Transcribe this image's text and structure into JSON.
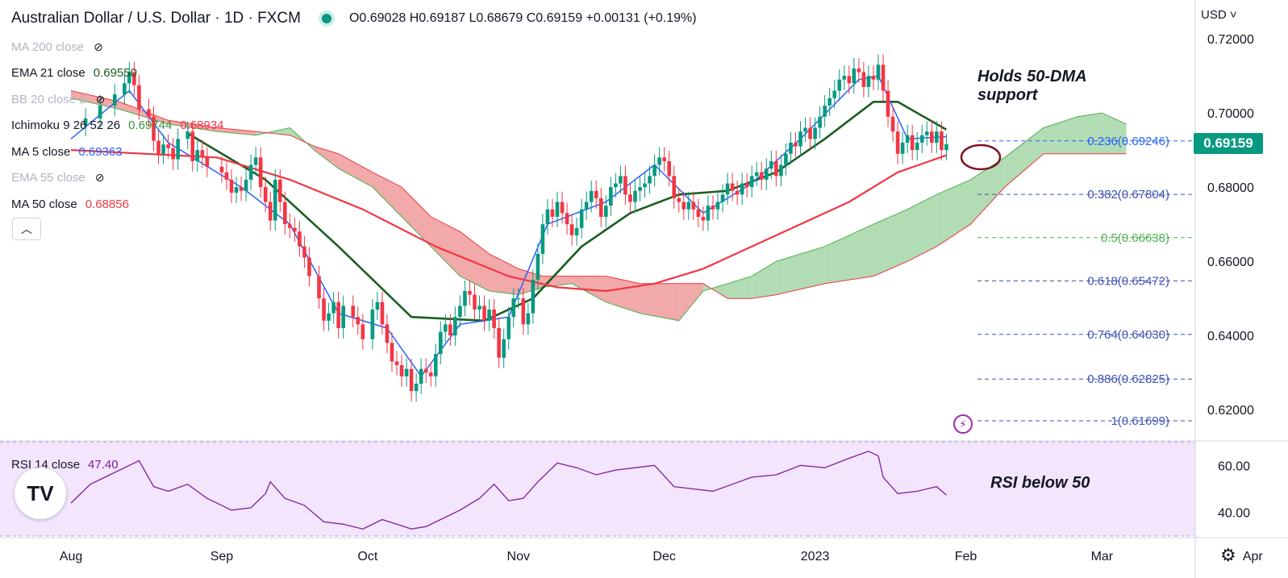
{
  "header": {
    "symbol": "Australian Dollar / U.S. Dollar · 1D · FXCM",
    "ohlc": "O0.69028 H0.69187 L0.68679 C0.69159 +0.00131 (+0.19%)"
  },
  "indicators": [
    {
      "name": "MA 200 close",
      "value": "",
      "hidden": true
    },
    {
      "name": "EMA 21 close",
      "value": "0.69550",
      "value_color": "#1b5e20"
    },
    {
      "name": "BB 20 close 2",
      "value": "",
      "hidden": true
    },
    {
      "name": "Ichimoku 9 26 52 26",
      "value": "0.69744",
      "value_color": "#388e3c",
      "value2": "0.68934",
      "value2_color": "#f23645"
    },
    {
      "name": "MA 5 close",
      "value": "0.69363",
      "value_color": "#2962ff"
    },
    {
      "name": "EMA 55 close",
      "value": "",
      "hidden": true
    },
    {
      "name": "MA 50 close",
      "value": "0.68856",
      "value_color": "#f23645"
    }
  ],
  "rsi_legend": {
    "name": "RSI 14 close",
    "value": "47.40"
  },
  "currency_label": "USD",
  "last_price": "0.69159",
  "annotations": {
    "top_note": [
      "Holds 50-DMA",
      "support"
    ],
    "rsi_note": "RSI below 50"
  },
  "logo_text": "TV",
  "colors": {
    "up": "#089981",
    "down": "#f23645",
    "ema21": "#1b5e20",
    "ma5": "#2962ff",
    "ma50": "#f23645",
    "cloud_bull": "#a5d6a7",
    "cloud_bear": "#ef9a9a",
    "rsi_line": "#7e1fa0",
    "rsi_band": "#f3e5fc",
    "fib": "#3f51b5"
  },
  "chart_data": {
    "type": "candlestick",
    "title": "Australian Dollar / U.S. Dollar · 1D · FXCM",
    "ylim": [
      0.612,
      0.7235
    ],
    "y_ticks": [
      "0.72000",
      "0.70000",
      "0.68000",
      "0.66000",
      "0.64000",
      "0.62000"
    ],
    "x_ticks": [
      {
        "label": "Aug",
        "day": 0
      },
      {
        "label": "Sep",
        "day": 31
      },
      {
        "label": "Oct",
        "day": 61
      },
      {
        "label": "Nov",
        "day": 92
      },
      {
        "label": "Dec",
        "day": 122
      },
      {
        "label": "2023",
        "day": 153
      },
      {
        "label": "Feb",
        "day": 184
      },
      {
        "label": "Mar",
        "day": 212
      },
      {
        "label": "Apr",
        "day": 243
      }
    ],
    "closes": [
      [
        0,
        0.6965
      ],
      [
        3,
        0.6985
      ],
      [
        6,
        0.702
      ],
      [
        9,
        0.705
      ],
      [
        11,
        0.708
      ],
      [
        12,
        0.711
      ],
      [
        13,
        0.7075
      ],
      [
        14,
        0.701
      ],
      [
        16,
        0.699
      ],
      [
        17,
        0.6925
      ],
      [
        18,
        0.689
      ],
      [
        19,
        0.6915
      ],
      [
        20,
        0.6905
      ],
      [
        21,
        0.6875
      ],
      [
        22,
        0.693
      ],
      [
        24,
        0.695
      ],
      [
        25,
        0.687
      ],
      [
        26,
        0.69
      ],
      [
        27,
        0.688
      ],
      [
        28,
        0.6855
      ],
      [
        31,
        0.684
      ],
      [
        32,
        0.682
      ],
      [
        33,
        0.6785
      ],
      [
        34,
        0.68
      ],
      [
        35,
        0.679
      ],
      [
        36,
        0.682
      ],
      [
        37,
        0.686
      ],
      [
        38,
        0.688
      ],
      [
        39,
        0.68
      ],
      [
        40,
        0.676
      ],
      [
        41,
        0.671
      ],
      [
        42,
        0.682
      ],
      [
        43,
        0.676
      ],
      [
        44,
        0.67
      ],
      [
        45,
        0.669
      ],
      [
        46,
        0.668
      ],
      [
        47,
        0.664
      ],
      [
        48,
        0.661
      ],
      [
        49,
        0.656
      ],
      [
        51,
        0.65
      ],
      [
        52,
        0.644
      ],
      [
        53,
        0.646
      ],
      [
        54,
        0.649
      ],
      [
        55,
        0.642
      ],
      [
        56,
        0.648
      ],
      [
        58,
        0.645
      ],
      [
        59,
        0.643
      ],
      [
        60,
        0.639
      ],
      [
        62,
        0.647
      ],
      [
        63,
        0.649
      ],
      [
        64,
        0.643
      ],
      [
        65,
        0.638
      ],
      [
        66,
        0.633
      ],
      [
        67,
        0.632
      ],
      [
        68,
        0.629
      ],
      [
        69,
        0.631
      ],
      [
        70,
        0.625
      ],
      [
        71,
        0.627
      ],
      [
        72,
        0.631
      ],
      [
        73,
        0.63
      ],
      [
        74,
        0.629
      ],
      [
        75,
        0.635
      ],
      [
        76,
        0.641
      ],
      [
        77,
        0.643
      ],
      [
        78,
        0.64
      ],
      [
        79,
        0.645
      ],
      [
        80,
        0.648
      ],
      [
        81,
        0.652
      ],
      [
        82,
        0.651
      ],
      [
        83,
        0.647
      ],
      [
        84,
        0.648
      ],
      [
        85,
        0.644
      ],
      [
        86,
        0.647
      ],
      [
        87,
        0.642
      ],
      [
        88,
        0.634
      ],
      [
        89,
        0.639
      ],
      [
        90,
        0.645
      ],
      [
        91,
        0.65
      ],
      [
        92,
        0.65
      ],
      [
        93,
        0.643
      ],
      [
        94,
        0.646
      ],
      [
        95,
        0.655
      ],
      [
        96,
        0.662
      ],
      [
        97,
        0.67
      ],
      [
        98,
        0.674
      ],
      [
        99,
        0.672
      ],
      [
        100,
        0.676
      ],
      [
        101,
        0.673
      ],
      [
        102,
        0.67
      ],
      [
        103,
        0.667
      ],
      [
        104,
        0.669
      ],
      [
        105,
        0.674
      ],
      [
        106,
        0.676
      ],
      [
        107,
        0.679
      ],
      [
        108,
        0.677
      ],
      [
        109,
        0.672
      ],
      [
        110,
        0.675
      ],
      [
        111,
        0.68
      ],
      [
        112,
        0.681
      ],
      [
        113,
        0.683
      ],
      [
        114,
        0.678
      ],
      [
        115,
        0.676
      ],
      [
        116,
        0.679
      ],
      [
        117,
        0.68
      ],
      [
        118,
        0.681
      ],
      [
        119,
        0.683
      ],
      [
        120,
        0.686
      ],
      [
        121,
        0.688
      ],
      [
        122,
        0.687
      ],
      [
        123,
        0.683
      ],
      [
        124,
        0.677
      ],
      [
        125,
        0.676
      ],
      [
        126,
        0.674
      ],
      [
        127,
        0.676
      ],
      [
        128,
        0.674
      ],
      [
        129,
        0.672
      ],
      [
        130,
        0.671
      ],
      [
        131,
        0.675
      ],
      [
        132,
        0.674
      ],
      [
        133,
        0.676
      ],
      [
        134,
        0.678
      ],
      [
        135,
        0.681
      ],
      [
        136,
        0.679
      ],
      [
        137,
        0.678
      ],
      [
        138,
        0.681
      ],
      [
        139,
        0.68
      ],
      [
        140,
        0.683
      ],
      [
        141,
        0.684
      ],
      [
        142,
        0.682
      ],
      [
        143,
        0.685
      ],
      [
        144,
        0.687
      ],
      [
        145,
        0.683
      ],
      [
        146,
        0.686
      ],
      [
        147,
        0.689
      ],
      [
        148,
        0.692
      ],
      [
        149,
        0.691
      ],
      [
        150,
        0.695
      ],
      [
        151,
        0.696
      ],
      [
        152,
        0.693
      ],
      [
        153,
        0.696
      ],
      [
        154,
        0.699
      ],
      [
        155,
        0.702
      ],
      [
        156,
        0.704
      ],
      [
        157,
        0.706
      ],
      [
        158,
        0.709
      ],
      [
        159,
        0.71
      ],
      [
        160,
        0.708
      ],
      [
        161,
        0.712
      ],
      [
        162,
        0.711
      ],
      [
        163,
        0.707
      ],
      [
        164,
        0.71
      ],
      [
        165,
        0.709
      ],
      [
        166,
        0.713
      ],
      [
        167,
        0.706
      ],
      [
        168,
        0.699
      ],
      [
        169,
        0.695
      ],
      [
        170,
        0.689
      ],
      [
        171,
        0.692
      ],
      [
        172,
        0.694
      ],
      [
        173,
        0.69
      ],
      [
        174,
        0.692
      ],
      [
        175,
        0.694
      ],
      [
        176,
        0.695
      ],
      [
        177,
        0.692
      ],
      [
        178,
        0.695
      ],
      [
        179,
        0.69
      ],
      [
        180,
        0.6916
      ]
    ],
    "series": [
      {
        "name": "EMA 21 close",
        "points": [
          [
            24,
            0.6945
          ],
          [
            40,
            0.682
          ],
          [
            55,
            0.664
          ],
          [
            70,
            0.645
          ],
          [
            85,
            0.644
          ],
          [
            95,
            0.65
          ],
          [
            105,
            0.664
          ],
          [
            115,
            0.673
          ],
          [
            125,
            0.678
          ],
          [
            135,
            0.679
          ],
          [
            145,
            0.684
          ],
          [
            155,
            0.693
          ],
          [
            165,
            0.703
          ],
          [
            170,
            0.703
          ],
          [
            180,
            0.6955
          ]
        ]
      },
      {
        "name": "MA 5 close",
        "points": [
          [
            0,
            0.693
          ],
          [
            12,
            0.706
          ],
          [
            20,
            0.692
          ],
          [
            35,
            0.68
          ],
          [
            45,
            0.67
          ],
          [
            55,
            0.646
          ],
          [
            65,
            0.642
          ],
          [
            72,
            0.629
          ],
          [
            80,
            0.643
          ],
          [
            90,
            0.645
          ],
          [
            98,
            0.67
          ],
          [
            110,
            0.676
          ],
          [
            120,
            0.686
          ],
          [
            130,
            0.673
          ],
          [
            140,
            0.681
          ],
          [
            150,
            0.693
          ],
          [
            162,
            0.709
          ],
          [
            166,
            0.71
          ],
          [
            172,
            0.693
          ],
          [
            180,
            0.6936
          ]
        ]
      },
      {
        "name": "MA 50 close",
        "points": [
          [
            0,
            0.69
          ],
          [
            30,
            0.688
          ],
          [
            45,
            0.682
          ],
          [
            60,
            0.674
          ],
          [
            75,
            0.664
          ],
          [
            90,
            0.656
          ],
          [
            100,
            0.653
          ],
          [
            110,
            0.652
          ],
          [
            120,
            0.654
          ],
          [
            130,
            0.658
          ],
          [
            140,
            0.664
          ],
          [
            150,
            0.67
          ],
          [
            160,
            0.676
          ],
          [
            170,
            0.684
          ],
          [
            180,
            0.6886
          ]
        ]
      }
    ],
    "cloud": {
      "span_a": [
        [
          0,
          0.704
        ],
        [
          10,
          0.701
        ],
        [
          20,
          0.697
        ],
        [
          30,
          0.695
        ],
        [
          38,
          0.694
        ],
        [
          45,
          0.696
        ],
        [
          50,
          0.69
        ],
        [
          55,
          0.685
        ],
        [
          62,
          0.68
        ],
        [
          68,
          0.672
        ],
        [
          74,
          0.664
        ],
        [
          80,
          0.656
        ],
        [
          86,
          0.652
        ],
        [
          92,
          0.651
        ],
        [
          97,
          0.653
        ],
        [
          103,
          0.654
        ],
        [
          110,
          0.649
        ],
        [
          117,
          0.646
        ],
        [
          125,
          0.644
        ],
        [
          130,
          0.652
        ],
        [
          135,
          0.654
        ],
        [
          140,
          0.656
        ],
        [
          145,
          0.66
        ],
        [
          155,
          0.664
        ],
        [
          165,
          0.67
        ],
        [
          172,
          0.674
        ],
        [
          178,
          0.678
        ],
        [
          185,
          0.682
        ],
        [
          192,
          0.688
        ],
        [
          200,
          0.696
        ],
        [
          207,
          0.699
        ],
        [
          212,
          0.7
        ],
        [
          217,
          0.697
        ]
      ],
      "span_b": [
        [
          0,
          0.706
        ],
        [
          10,
          0.703
        ],
        [
          20,
          0.698
        ],
        [
          30,
          0.696
        ],
        [
          38,
          0.695
        ],
        [
          45,
          0.694
        ],
        [
          50,
          0.691
        ],
        [
          55,
          0.689
        ],
        [
          62,
          0.684
        ],
        [
          68,
          0.68
        ],
        [
          74,
          0.672
        ],
        [
          80,
          0.668
        ],
        [
          86,
          0.662
        ],
        [
          92,
          0.658
        ],
        [
          97,
          0.656
        ],
        [
          103,
          0.656
        ],
        [
          110,
          0.656
        ],
        [
          117,
          0.654
        ],
        [
          125,
          0.654
        ],
        [
          130,
          0.654
        ],
        [
          135,
          0.65
        ],
        [
          140,
          0.65
        ],
        [
          145,
          0.651
        ],
        [
          155,
          0.654
        ],
        [
          165,
          0.656
        ],
        [
          172,
          0.66
        ],
        [
          178,
          0.664
        ],
        [
          185,
          0.67
        ],
        [
          192,
          0.68
        ],
        [
          200,
          0.689
        ],
        [
          207,
          0.689
        ],
        [
          212,
          0.689
        ],
        [
          217,
          0.689
        ]
      ]
    },
    "fib_levels": [
      {
        "ratio": "0.236",
        "price": 0.69246,
        "label": "0.236(0.69246)"
      },
      {
        "ratio": "0.382",
        "price": 0.67804,
        "label": "0.382(0.67804)"
      },
      {
        "ratio": "0.5",
        "price": 0.66638,
        "label": "0.5(0.66638)"
      },
      {
        "ratio": "0.618",
        "price": 0.65472,
        "label": "0.618(0.65472)"
      },
      {
        "ratio": "0.764",
        "price": 0.6403,
        "label": "0.764(0.64030)"
      },
      {
        "ratio": "0.886",
        "price": 0.62825,
        "label": "0.886(0.62825)"
      },
      {
        "ratio": "1",
        "price": 0.61699,
        "label": "1(0.61699)"
      }
    ],
    "rsi": {
      "ylim": [
        31,
        69
      ],
      "y_ticks": [
        "60.00",
        "40.00"
      ],
      "band": [
        30,
        70
      ],
      "points": [
        [
          0,
          44
        ],
        [
          4,
          52
        ],
        [
          8,
          56
        ],
        [
          12,
          60
        ],
        [
          14,
          62
        ],
        [
          17,
          51
        ],
        [
          20,
          49
        ],
        [
          24,
          52
        ],
        [
          28,
          46
        ],
        [
          33,
          41
        ],
        [
          37,
          42
        ],
        [
          40,
          48
        ],
        [
          41,
          53
        ],
        [
          44,
          46
        ],
        [
          48,
          43
        ],
        [
          52,
          36
        ],
        [
          56,
          35
        ],
        [
          60,
          33
        ],
        [
          64,
          37
        ],
        [
          67,
          35
        ],
        [
          70,
          33
        ],
        [
          73,
          34
        ],
        [
          76,
          37
        ],
        [
          80,
          41
        ],
        [
          84,
          46
        ],
        [
          87,
          52
        ],
        [
          90,
          45
        ],
        [
          93,
          46
        ],
        [
          96,
          53
        ],
        [
          100,
          61
        ],
        [
          104,
          59
        ],
        [
          108,
          56
        ],
        [
          112,
          58
        ],
        [
          116,
          59
        ],
        [
          120,
          60
        ],
        [
          124,
          51
        ],
        [
          128,
          50
        ],
        [
          132,
          49
        ],
        [
          136,
          52
        ],
        [
          140,
          55
        ],
        [
          145,
          56
        ],
        [
          150,
          60
        ],
        [
          155,
          59
        ],
        [
          160,
          63
        ],
        [
          164,
          66
        ],
        [
          166,
          64
        ],
        [
          167,
          55
        ],
        [
          170,
          48
        ],
        [
          174,
          49
        ],
        [
          178,
          51
        ],
        [
          180,
          47.4
        ]
      ]
    }
  }
}
